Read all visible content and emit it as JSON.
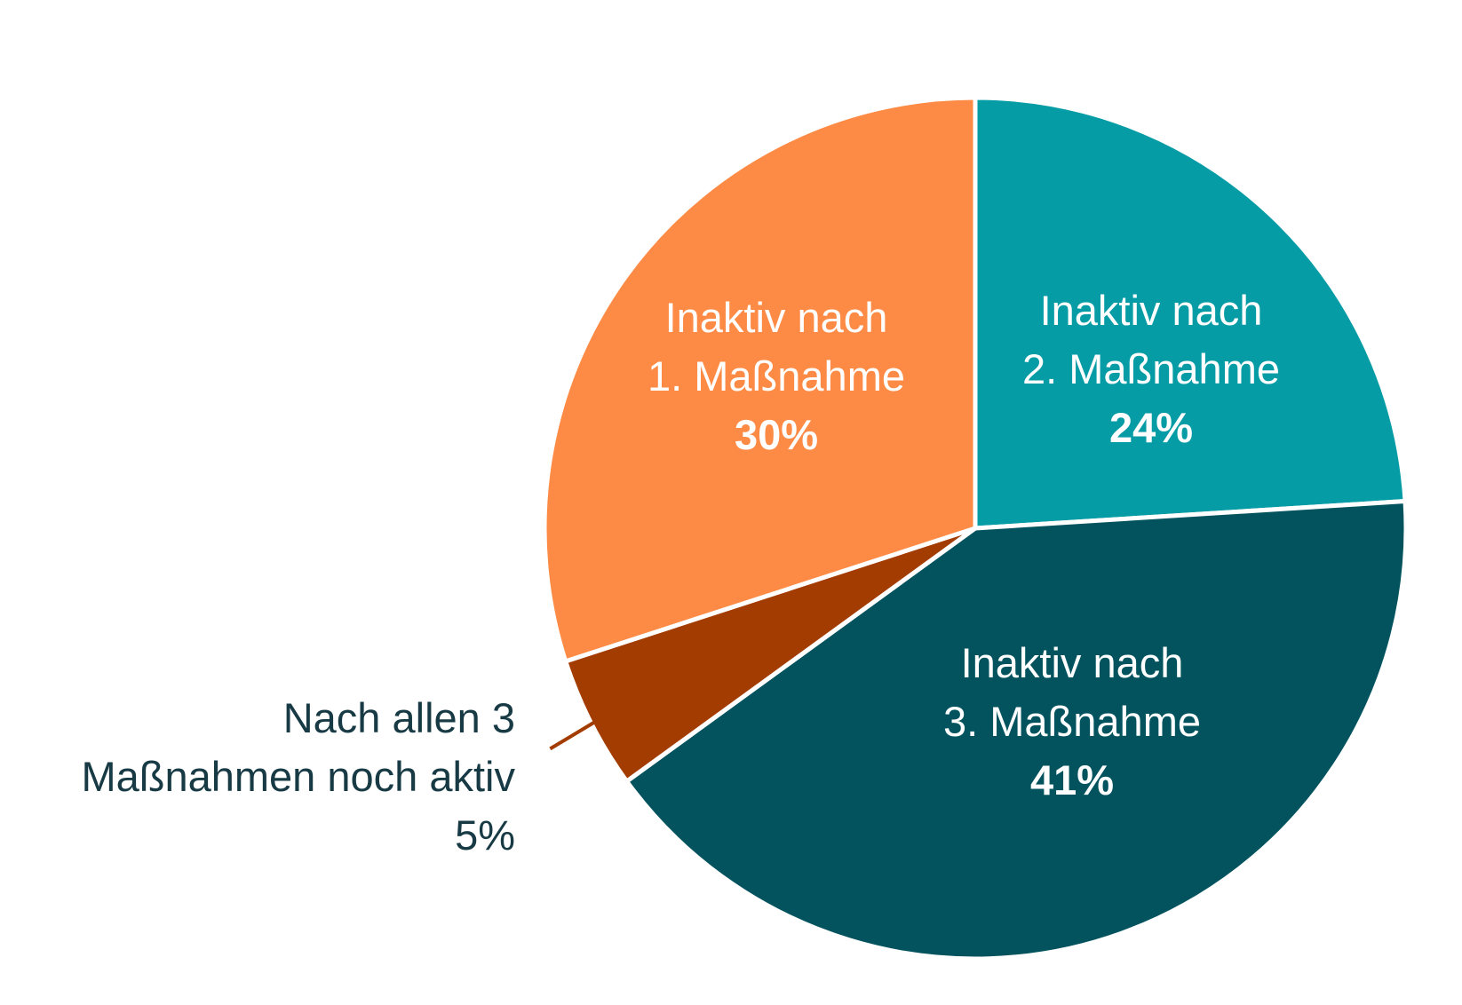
{
  "chart_data": {
    "type": "pie",
    "slices": [
      {
        "label_lines": [
          "Inaktiv nach",
          "2. Maßnahme"
        ],
        "value": 24,
        "value_label": "24%",
        "color": "#069ca6"
      },
      {
        "label_lines": [
          "Inaktiv nach",
          "3. Maßnahme"
        ],
        "value": 41,
        "value_label": "41%",
        "color": "#02535e"
      },
      {
        "label_lines": [
          "Nach allen 3",
          "Maßnahmen noch aktiv"
        ],
        "value": 5,
        "value_label": "5%",
        "color": "#a33c00"
      },
      {
        "label_lines": [
          "Inaktiv nach",
          "1. Maßnahme"
        ],
        "value": 30,
        "value_label": "30%",
        "color": "#fd8b45"
      }
    ],
    "start_angle_deg": 0,
    "direction": "clockwise",
    "label_text_color": "#ffffff",
    "external_label_color": "#173a45",
    "separator_color": "#ffffff"
  }
}
